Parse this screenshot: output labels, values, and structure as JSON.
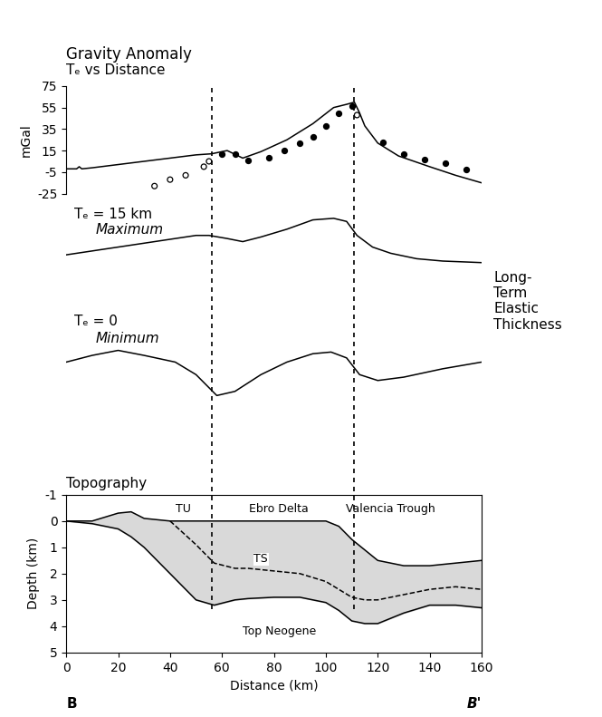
{
  "chart_data": [
    {
      "type": "line",
      "title": "Gravity Anomaly",
      "subtitle": "Tₑ vs Distance",
      "y_label": "mGal",
      "xlim": [
        0,
        160
      ],
      "ylim": [
        -25,
        75
      ],
      "yticks": [
        -25,
        -5,
        15,
        35,
        55,
        75
      ],
      "tick_labels": "y",
      "series": [
        {
          "type": "line",
          "color": "#000000",
          "line_style": "solid",
          "x": [
            0,
            4,
            5,
            6,
            10,
            20,
            30,
            40,
            50,
            56,
            62,
            68,
            75,
            85,
            95,
            103,
            108,
            111,
            113,
            115,
            120,
            128,
            140,
            150,
            160
          ],
          "values": [
            -2,
            -2,
            0,
            -2,
            -1,
            2,
            5,
            8,
            11,
            12,
            15,
            8,
            14,
            25,
            40,
            55,
            58,
            60,
            50,
            38,
            22,
            10,
            0,
            -8,
            -15
          ]
        },
        {
          "type": "scatter",
          "color": "#000000",
          "marker": "filled",
          "x": [
            60,
            65,
            70,
            78,
            84,
            90,
            95,
            100,
            105,
            110,
            122,
            130,
            138,
            146,
            154
          ],
          "values": [
            12,
            12,
            6,
            8,
            15,
            22,
            28,
            38,
            50,
            56,
            23,
            12,
            7,
            3,
            -3
          ]
        },
        {
          "type": "scatter",
          "color": "#000000",
          "marker": "open",
          "x": [
            34,
            40,
            46,
            53,
            55,
            112
          ],
          "values": [
            -18,
            -12,
            -8,
            0,
            5,
            48
          ]
        }
      ]
    },
    {
      "type": "line",
      "label": "Tₑ = 15 km",
      "sublabel": "Maximum",
      "xlim": [
        0,
        160
      ],
      "ylim": [
        -60,
        60
      ],
      "tick_labels": false,
      "series": [
        {
          "type": "line",
          "color": "#000000",
          "line_style": "solid",
          "x": [
            0,
            10,
            20,
            30,
            40,
            50,
            55,
            62,
            68,
            75,
            85,
            95,
            103,
            108,
            112,
            118,
            125,
            135,
            145,
            160
          ],
          "values": [
            -5,
            0,
            5,
            10,
            15,
            20,
            20,
            16,
            12,
            18,
            28,
            40,
            42,
            38,
            20,
            5,
            -3,
            -10,
            -13,
            -15
          ]
        }
      ]
    },
    {
      "type": "line",
      "label": "Tₑ = 0",
      "sublabel": "Minimum",
      "xlim": [
        0,
        160
      ],
      "ylim": [
        -60,
        60
      ],
      "tick_labels": false,
      "series": [
        {
          "type": "line",
          "color": "#000000",
          "line_style": "solid",
          "x": [
            0,
            10,
            20,
            30,
            42,
            50,
            58,
            65,
            75,
            85,
            95,
            102,
            108,
            113,
            120,
            130,
            145,
            160
          ],
          "values": [
            0,
            8,
            14,
            8,
            0,
            -15,
            -40,
            -35,
            -15,
            0,
            10,
            12,
            5,
            -15,
            -22,
            -18,
            -8,
            0
          ]
        }
      ]
    },
    {
      "type": "line",
      "title": "Topography",
      "x_label": "Distance (km)",
      "y_label": "Depth (km)",
      "xlim": [
        0,
        160
      ],
      "xticks": [
        0,
        20,
        40,
        60,
        80,
        100,
        120,
        140,
        160
      ],
      "ylim": [
        5,
        -1
      ],
      "yticks": [
        -1,
        0,
        1,
        2,
        3,
        4,
        5
      ],
      "x": [
        0,
        10,
        20,
        25,
        30,
        40,
        50,
        57,
        65,
        70,
        80,
        90,
        100,
        105,
        110,
        115,
        120,
        130,
        140,
        150,
        160
      ],
      "series": [
        {
          "type": "line",
          "color": "#000000",
          "line_style": "solid",
          "values": [
            0,
            0,
            -0.3,
            -0.35,
            -0.1,
            0,
            0,
            0,
            0,
            0,
            0,
            0,
            0,
            0.2,
            0.7,
            1.1,
            1.5,
            1.7,
            1.7,
            1.6,
            1.5
          ]
        },
        {
          "type": "line",
          "color": "#000000",
          "line_style": "dashed",
          "values": [
            null,
            null,
            null,
            null,
            null,
            0,
            0.9,
            1.6,
            1.8,
            1.8,
            1.9,
            2.0,
            2.3,
            2.6,
            2.9,
            3.0,
            3.0,
            2.8,
            2.6,
            2.5,
            2.6
          ]
        },
        {
          "type": "line",
          "color": "#000000",
          "line_style": "solid",
          "values": [
            0,
            0.1,
            0.3,
            0.6,
            1.0,
            2.0,
            3.0,
            3.2,
            3.0,
            2.95,
            2.9,
            2.9,
            3.1,
            3.4,
            3.8,
            3.9,
            3.9,
            3.5,
            3.2,
            3.2,
            3.3
          ]
        }
      ],
      "annotations": [
        {
          "text": "TU",
          "x": 45,
          "y": -0.45
        },
        {
          "text": "Ebro Delta",
          "x": 82,
          "y": -0.45
        },
        {
          "text": "Valencia Trough",
          "x": 125,
          "y": -0.45
        },
        {
          "text": "TS",
          "x": 75,
          "y": 1.45
        },
        {
          "text": "Top Neogene",
          "x": 82,
          "y": 4.2
        }
      ],
      "section_labels": [
        "B",
        "B'"
      ]
    }
  ],
  "side_label": "Long-\nTerm\nElastic\nThickness",
  "vertical_lines": [
    56,
    111
  ]
}
